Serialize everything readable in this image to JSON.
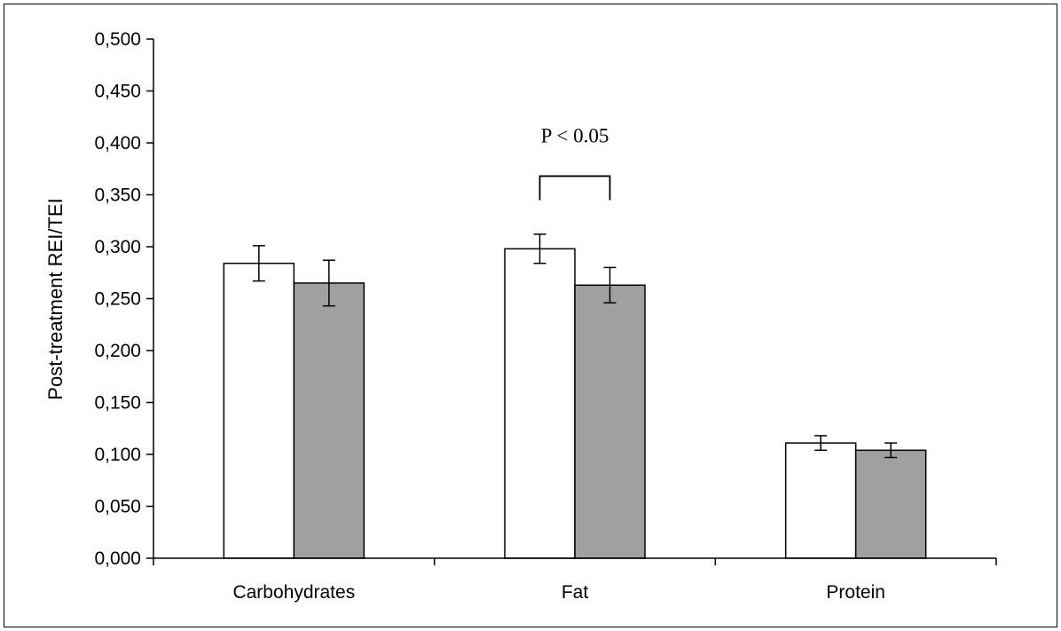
{
  "chart_data": {
    "type": "bar",
    "ylabel": "Post-treatment REI/TEI",
    "xlabel": "",
    "ylim": [
      0,
      0.5
    ],
    "y_tick_step": 0.05,
    "y_tick_labels": [
      "0,000",
      "0,050",
      "0,100",
      "0,150",
      "0,200",
      "0,250",
      "0,300",
      "0,350",
      "0,400",
      "0,450",
      "0,500"
    ],
    "categories": [
      "Carbohydrates",
      "Fat",
      "Protein"
    ],
    "series": [
      {
        "fill": "#ffffff",
        "values": [
          0.284,
          0.298,
          0.111
        ],
        "errors": [
          0.017,
          0.014,
          0.007
        ]
      },
      {
        "fill": "#a0a0a0",
        "values": [
          0.265,
          0.263,
          0.104
        ],
        "errors": [
          0.022,
          0.017,
          0.007
        ]
      }
    ],
    "grid": false,
    "legend": "none",
    "annotation": {
      "text": "P < 0.05",
      "category": "Fat",
      "bracket_level": 0.368
    }
  }
}
